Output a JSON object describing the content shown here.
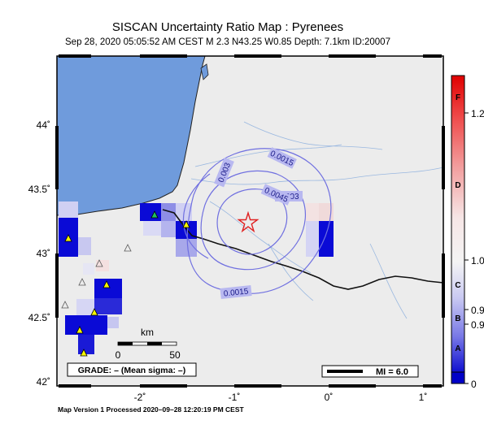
{
  "header": {
    "title": "SISCAN Uncertainty Ratio Map : Pyrenees",
    "subtitle": "Sep 28, 2020 05:05:52 AM CEST   M 2.3   N43.25 W0.85   Depth: 7.1km   ID:20007"
  },
  "map": {
    "lat_ticks": [
      "44˚",
      "43.5˚",
      "43˚",
      "42.5˚",
      "42˚"
    ],
    "lon_ticks": [
      "-2˚",
      "-1˚",
      "0˚",
      "1˚"
    ],
    "scale_bar": {
      "unit": "km",
      "start": "0",
      "end": "50"
    },
    "grade_box": "GRADE: – (Mean sigma: –)",
    "mi_legend": "MI = 6.0",
    "contours": [
      "0.0015",
      "0.003",
      "0.003",
      "0.0045",
      "0.0015"
    ],
    "epicenter": {
      "lat": 43.25,
      "lon": -0.85
    },
    "colors": {
      "sea": "#6f9bdc",
      "land": "#ececec",
      "contour": "#7070e0",
      "epicenter": "#e02020"
    }
  },
  "colorbar": {
    "letters": [
      "F",
      "D",
      "C",
      "B",
      "A"
    ],
    "ticks": [
      "1.2",
      "1.0",
      "0.9",
      "0.9",
      "0"
    ]
  },
  "footer": {
    "text": "Map Version 1 Processed 2020–09–28 12:20:19 PM CEST"
  }
}
